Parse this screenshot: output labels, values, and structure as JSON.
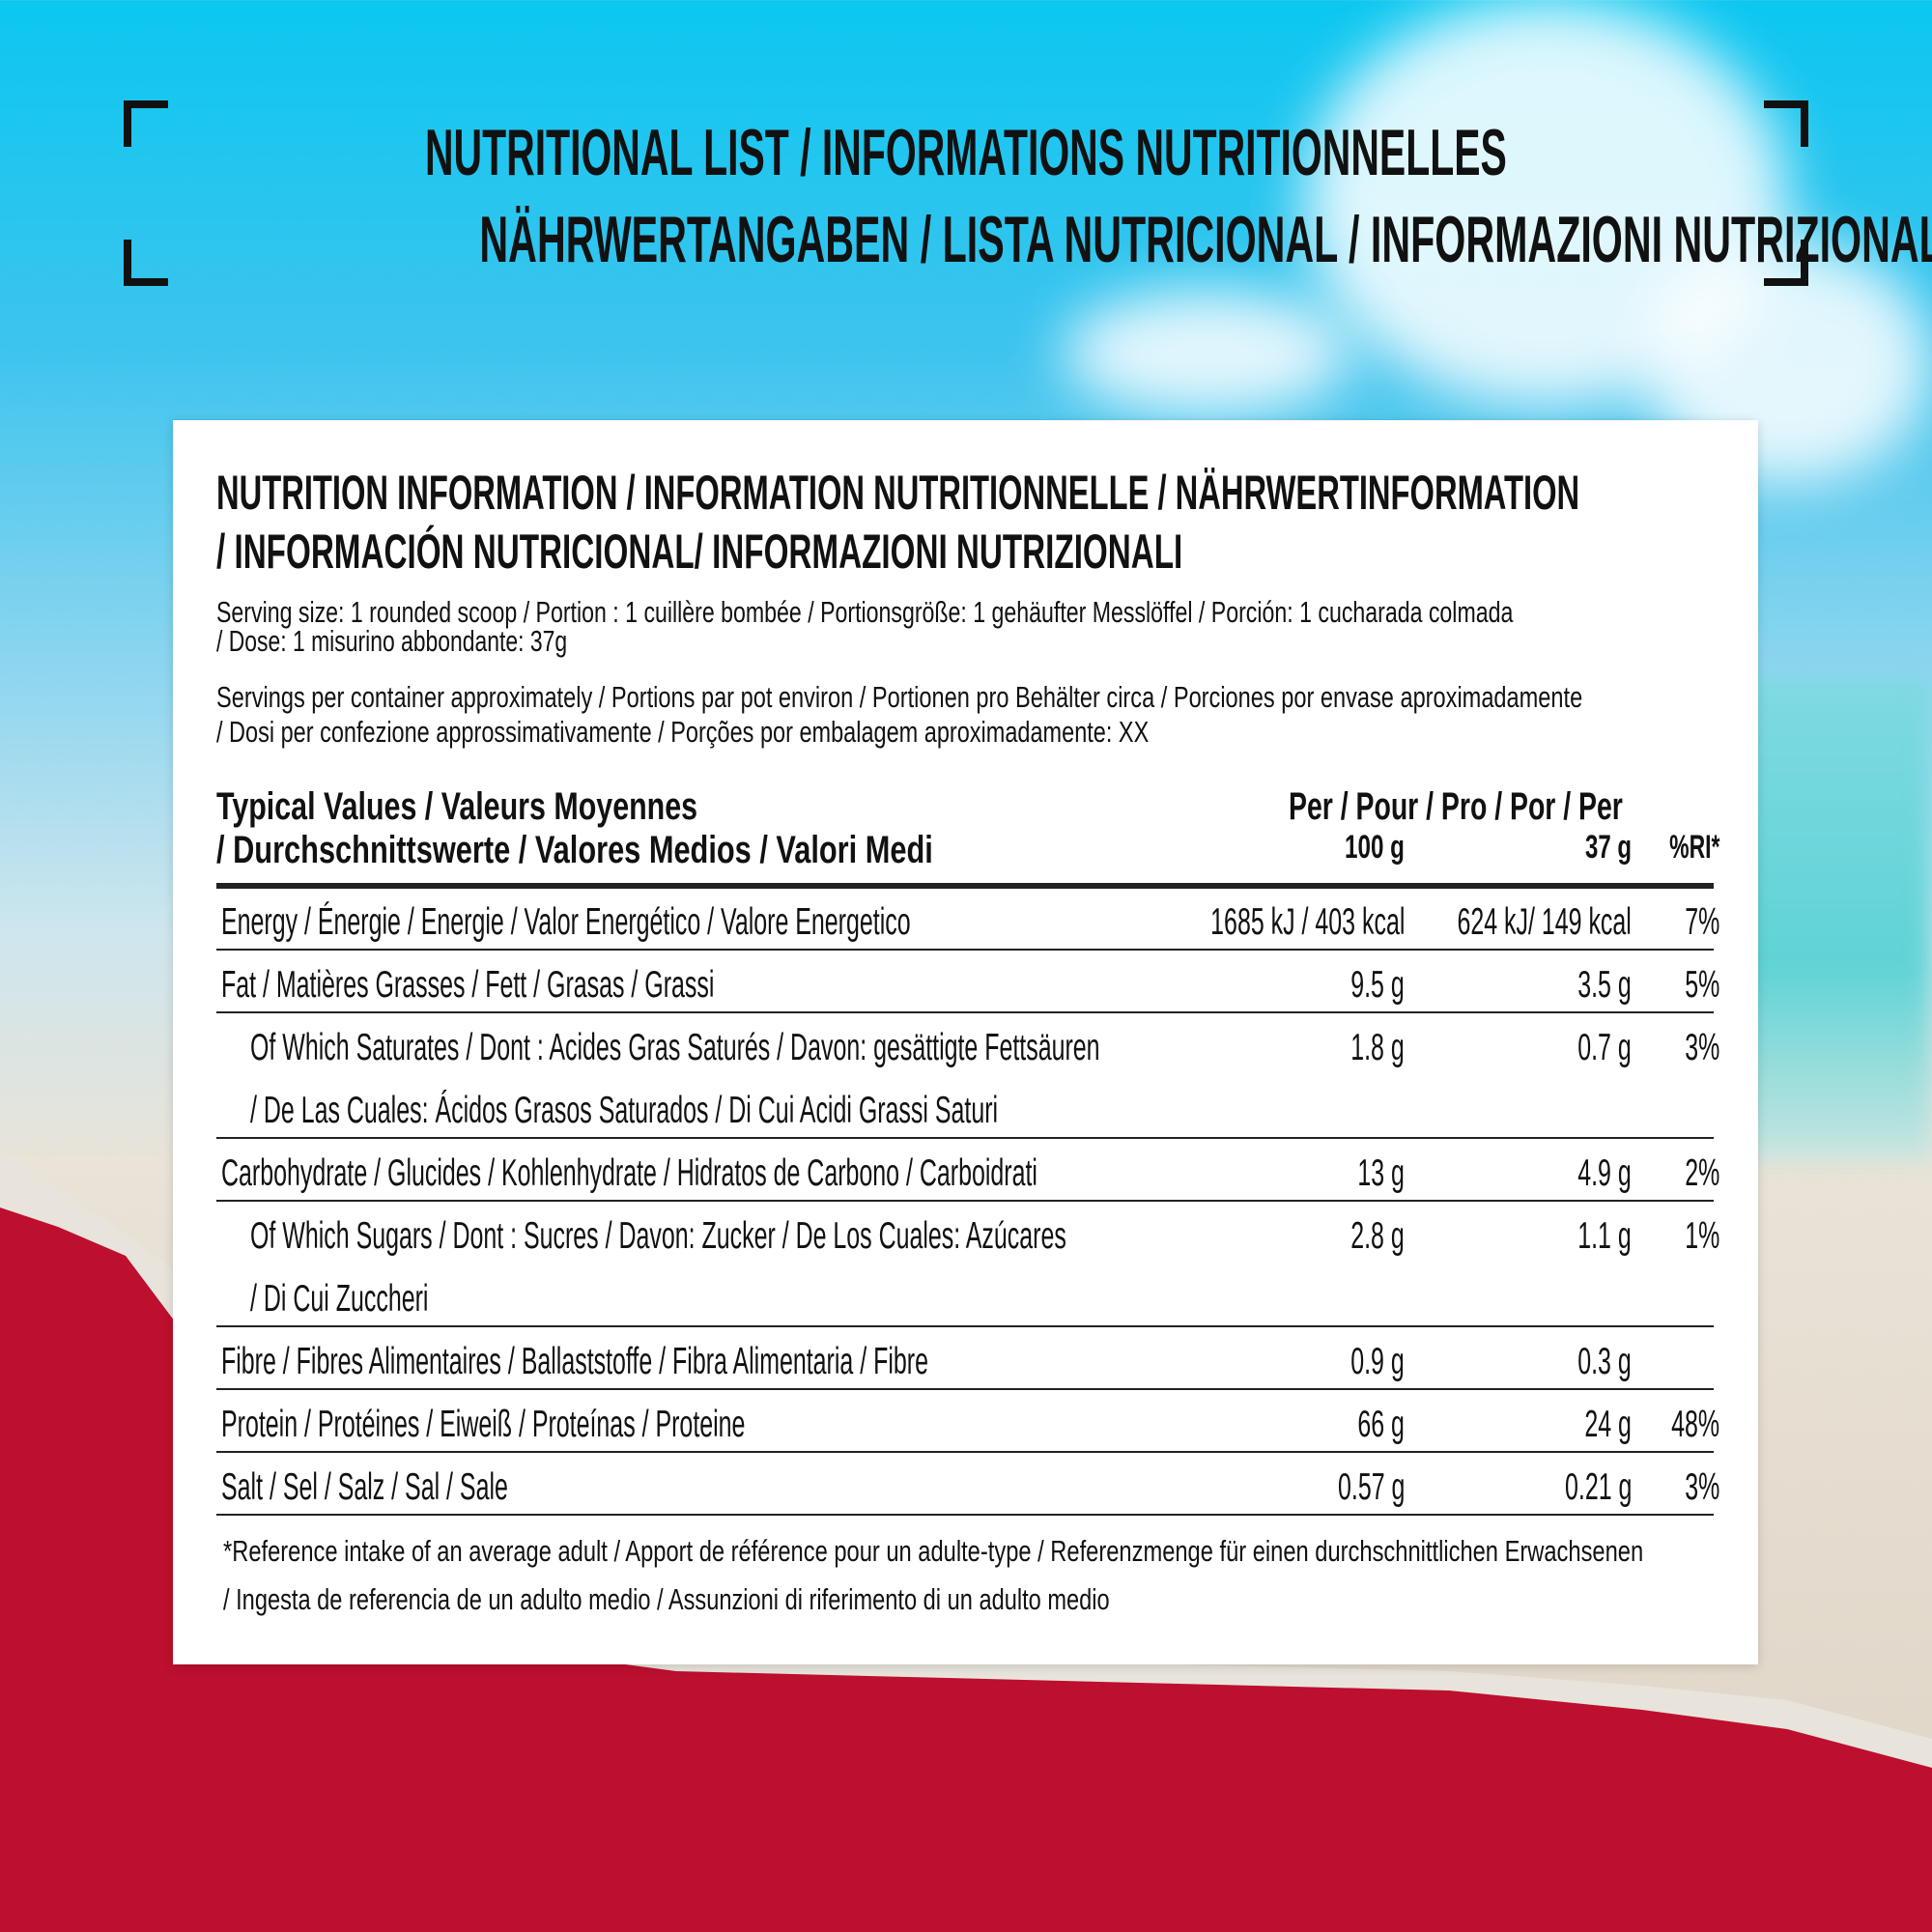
{
  "banner": {
    "title_line1": "NUTRITIONAL LIST / INFORMATIONS NUTRITIONNELLES",
    "title_line2": "NÄHRWERTANGABEN / LISTA NUTRICIONAL / INFORMAZIONI NUTRIZIONALI"
  },
  "colors": {
    "sky": "#0bc7f0",
    "red": "#bd0f2e",
    "text": "#111111",
    "card": "#ffffff"
  },
  "card": {
    "heading_line1": "NUTRITION INFORMATION / INFORMATION NUTRITIONNELLE / NÄHRWERTINFORMATION",
    "heading_line2": "/ INFORMACIÓN NUTRICIONAL/ INFORMAZIONI NUTRIZIONALI",
    "serving_line1": "Serving size: 1 rounded scoop / Portion : 1 cuillère bombée / Portionsgröße: 1 gehäufter Messlöffel / Porción: 1 cucharada  colmada",
    "serving_line2": "/ Dose: 1 misurino abbondante: 37g",
    "servings_line1": "Servings per container approximately / Portions par pot environ / Portionen pro Behälter circa / Porciones por envase aproximadamente",
    "servings_line2": "/ Dosi per confezione approssimativamente / Porções por embalagem aproximadamente: XX",
    "table": {
      "header_label_line1": "Typical Values / Valeurs Moyennes",
      "header_label_line2": "/ Durchschnittswerte / Valores Medios / Valori Medi",
      "header_per": "Per / Pour / Pro / Por / Per",
      "col_100g": "100 g",
      "col_serving": "37 g",
      "col_ri": "%RI*",
      "rows": [
        {
          "label": [
            "Energy / Énergie / Energie / Valor Energético / Valore Energetico"
          ],
          "per100": "1685 kJ / 403 kcal",
          "perServing": "624 kJ/ 149 kcal",
          "ri": "7%",
          "indent": false
        },
        {
          "label": [
            "Fat / Matières Grasses / Fett / Grasas / Grassi"
          ],
          "per100": "9.5 g",
          "perServing": "3.5 g",
          "ri": "5%",
          "indent": false
        },
        {
          "label": [
            "Of Which Saturates / Dont : Acides Gras Saturés / Davon: gesättigte Fettsäuren",
            "/ De Las Cuales: Ácidos Grasos Saturados / Di Cui Acidi Grassi Saturi"
          ],
          "per100": "1.8 g",
          "perServing": "0.7 g",
          "ri": "3%",
          "indent": true
        },
        {
          "label": [
            "Carbohydrate / Glucides / Kohlenhydrate / Hidratos de Carbono / Carboidrati"
          ],
          "per100": "13 g",
          "perServing": "4.9 g",
          "ri": "2%",
          "indent": false
        },
        {
          "label": [
            "Of Which Sugars / Dont : Sucres / Davon: Zucker / De Los Cuales: Azúcares",
            "/ Di Cui Zuccheri"
          ],
          "per100": "2.8 g",
          "perServing": "1.1 g",
          "ri": "1%",
          "indent": true
        },
        {
          "label": [
            "Fibre / Fibres Alimentaires / Ballaststoffe / Fibra Alimentaria / Fibre"
          ],
          "per100": "0.9 g",
          "perServing": "0.3 g",
          "ri": "",
          "indent": false
        },
        {
          "label": [
            "Protein / Protéines / Eiweiß / Proteínas / Proteine"
          ],
          "per100": "66 g",
          "perServing": "24 g",
          "ri": "48%",
          "indent": false
        },
        {
          "label": [
            "Salt / Sel / Salz / Sal / Sale"
          ],
          "per100": "0.57 g",
          "perServing": "0.21 g",
          "ri": "3%",
          "indent": false
        }
      ]
    },
    "footnote_line1": "*Reference intake of an average adult / Apport de référence pour un adulte-type / Referenzmenge für einen durchschnittlichen Erwachsenen",
    "footnote_line2": "/ Ingesta de referencia de un adulto medio / Assunzioni di riferimento di un adulto medio"
  }
}
